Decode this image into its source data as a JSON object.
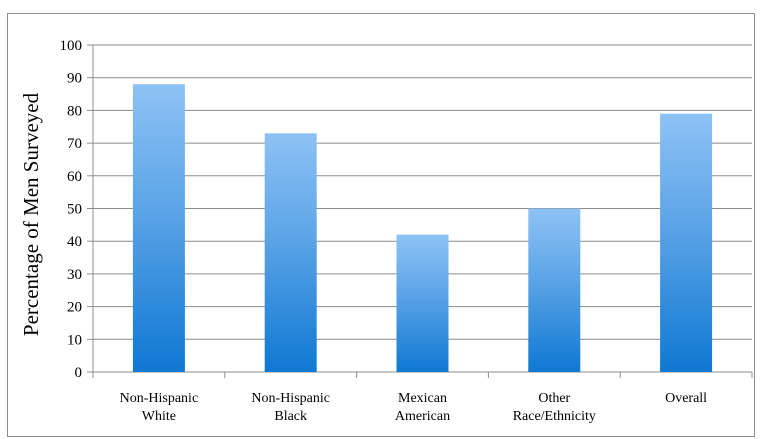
{
  "chart_data": {
    "type": "bar",
    "categories": [
      [
        "Non-Hispanic",
        "White"
      ],
      [
        "Non-Hispanic",
        "Black"
      ],
      [
        "Mexican",
        "American"
      ],
      [
        "Other",
        "Race/Ethnicity"
      ],
      [
        "Overall"
      ]
    ],
    "values": [
      88,
      73,
      42,
      50,
      79
    ],
    "title": "",
    "xlabel": "",
    "ylabel": "Percentage of Men Surveyed",
    "ylim": [
      0,
      100
    ],
    "yticks": [
      0,
      10,
      20,
      30,
      40,
      50,
      60,
      70,
      80,
      90,
      100
    ],
    "grid": true,
    "legend": "none",
    "colors": {
      "bar_top": "#8ec2f5",
      "bar_bottom": "#0f78d2",
      "grid": "#8c8c8c",
      "axis": "#8c8c8c"
    }
  }
}
